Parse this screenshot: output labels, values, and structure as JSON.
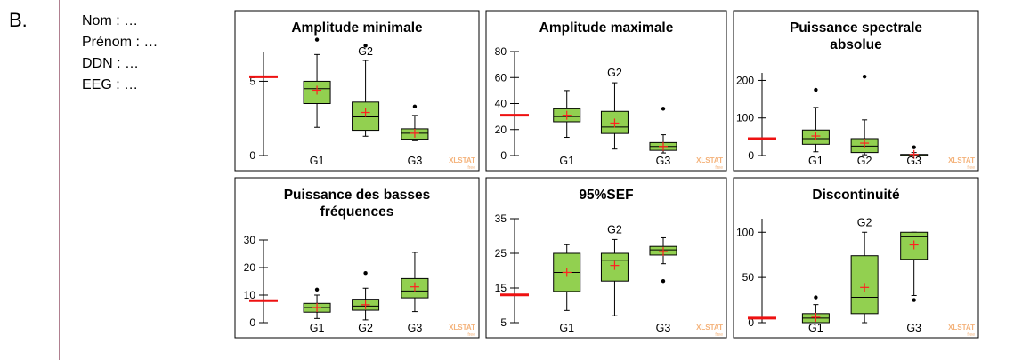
{
  "section_letter": "B.",
  "info_lines": [
    "Nom : …",
    "Prénom : …",
    "DDN : …",
    "EEG : …"
  ],
  "watermark": {
    "main": "XLSTAT",
    "sub": "free"
  },
  "colors": {
    "box_fill": "#92d050",
    "mean_marker": "#ff2020",
    "patient_marker": "#ee1111",
    "watermark": "#f4b27a"
  },
  "chart_data": [
    {
      "type": "box",
      "title": [
        "Amplitude minimale"
      ],
      "ylim": [
        0,
        7
      ],
      "yticks": [
        0,
        5
      ],
      "patient_value": 5.3,
      "groups": [
        {
          "label": "G1",
          "label_pos": "bottom",
          "whisker_low": 1.9,
          "q1": 3.5,
          "median": 4.5,
          "q3": 5.0,
          "whisker_high": 6.8,
          "mean": 4.4,
          "outliers": [
            7.8
          ]
        },
        {
          "label": "G2",
          "label_pos": "top",
          "whisker_low": 1.3,
          "q1": 1.7,
          "median": 2.6,
          "q3": 3.6,
          "whisker_high": 6.4,
          "mean": 2.9,
          "outliers": [
            7.4
          ]
        },
        {
          "label": "G3",
          "label_pos": "bottom",
          "whisker_low": 1.0,
          "q1": 1.1,
          "median": 1.5,
          "q3": 1.8,
          "whisker_high": 2.7,
          "mean": 1.5,
          "outliers": [
            3.3
          ]
        }
      ]
    },
    {
      "type": "box",
      "title": [
        "Amplitude maximale"
      ],
      "ylim": [
        0,
        80
      ],
      "yticks": [
        0,
        20,
        40,
        60,
        80
      ],
      "patient_value": 31,
      "groups": [
        {
          "label": "G1",
          "label_pos": "bottom",
          "whisker_low": 14,
          "q1": 26,
          "median": 30,
          "q3": 36,
          "whisker_high": 50,
          "mean": 31,
          "outliers": []
        },
        {
          "label": "G2",
          "label_pos": "top",
          "whisker_low": 5,
          "q1": 17,
          "median": 22,
          "q3": 34,
          "whisker_high": 56,
          "mean": 25,
          "outliers": []
        },
        {
          "label": "G3",
          "label_pos": "bottom",
          "whisker_low": 2,
          "q1": 4,
          "median": 7,
          "q3": 10,
          "whisker_high": 16,
          "mean": 7,
          "outliers": [
            36
          ]
        }
      ]
    },
    {
      "type": "box",
      "title": [
        "Puissance spectrale",
        "absolue"
      ],
      "ylim": [
        0,
        220
      ],
      "yticks": [
        0,
        100,
        200
      ],
      "patient_value": 45,
      "groups": [
        {
          "label": "G1",
          "label_pos": "bottom",
          "whisker_low": 10,
          "q1": 30,
          "median": 45,
          "q3": 68,
          "whisker_high": 128,
          "mean": 52,
          "outliers": [
            175
          ]
        },
        {
          "label": "G2",
          "label_pos": "bottom",
          "whisker_low": 2,
          "q1": 8,
          "median": 25,
          "q3": 45,
          "whisker_high": 95,
          "mean": 33,
          "outliers": [
            210
          ]
        },
        {
          "label": "G3",
          "label_pos": "bottom",
          "whisker_low": 0,
          "q1": 1,
          "median": 2,
          "q3": 3,
          "whisker_high": 8,
          "mean": 3,
          "outliers": [
            22
          ]
        }
      ]
    },
    {
      "type": "box",
      "title": [
        "Puissance des basses",
        "fréquences"
      ],
      "ylim": [
        0,
        30
      ],
      "yticks": [
        0,
        10,
        20,
        30
      ],
      "patient_value": 8,
      "groups": [
        {
          "label": "G1",
          "label_pos": "bottom",
          "whisker_low": 1.5,
          "q1": 3.8,
          "median": 5.5,
          "q3": 7.0,
          "whisker_high": 10,
          "mean": 5.5,
          "outliers": [
            12
          ]
        },
        {
          "label": "G2",
          "label_pos": "bottom",
          "whisker_low": 1.0,
          "q1": 4.5,
          "median": 6.0,
          "q3": 8.5,
          "whisker_high": 12.5,
          "mean": 6.5,
          "outliers": [
            18
          ]
        },
        {
          "label": "G3",
          "label_pos": "bottom",
          "whisker_low": 4.0,
          "q1": 9.0,
          "median": 11.5,
          "q3": 16.0,
          "whisker_high": 25.5,
          "mean": 13.0,
          "outliers": []
        }
      ]
    },
    {
      "type": "box",
      "title": [
        "95%SEF"
      ],
      "ylim": [
        5,
        35
      ],
      "yticks": [
        5,
        15,
        25,
        35
      ],
      "patient_value": 13,
      "groups": [
        {
          "label": "G1",
          "label_pos": "bottom",
          "whisker_low": 8.5,
          "q1": 14.0,
          "median": 19.5,
          "q3": 25.0,
          "whisker_high": 27.5,
          "mean": 19.5,
          "outliers": []
        },
        {
          "label": "G2",
          "label_pos": "top",
          "whisker_low": 7.0,
          "q1": 17.0,
          "median": 23.0,
          "q3": 25.0,
          "whisker_high": 29.0,
          "mean": 21.5,
          "outliers": []
        },
        {
          "label": "G3",
          "label_pos": "bottom",
          "whisker_low": 22.0,
          "q1": 24.5,
          "median": 26.0,
          "q3": 27.0,
          "whisker_high": 29.5,
          "mean": 25.5,
          "outliers": [
            17
          ]
        }
      ]
    },
    {
      "type": "box",
      "title": [
        "Discontinuité"
      ],
      "ylim": [
        0,
        115
      ],
      "yticks": [
        0,
        50,
        100
      ],
      "patient_value": 5,
      "groups": [
        {
          "label": "G1",
          "label_pos": "bottom",
          "whisker_low": 0,
          "q1": 0,
          "median": 5,
          "q3": 10,
          "whisker_high": 20,
          "mean": 6,
          "outliers": [
            28
          ]
        },
        {
          "label": "G2",
          "label_pos": "top",
          "whisker_low": 0,
          "q1": 10,
          "median": 28,
          "q3": 74,
          "whisker_high": 100,
          "mean": 39,
          "outliers": []
        },
        {
          "label": "G3",
          "label_pos": "bottom",
          "whisker_low": 30,
          "q1": 70,
          "median": 95,
          "q3": 100,
          "whisker_high": 100,
          "mean": 86,
          "outliers": [
            25
          ]
        }
      ]
    }
  ]
}
